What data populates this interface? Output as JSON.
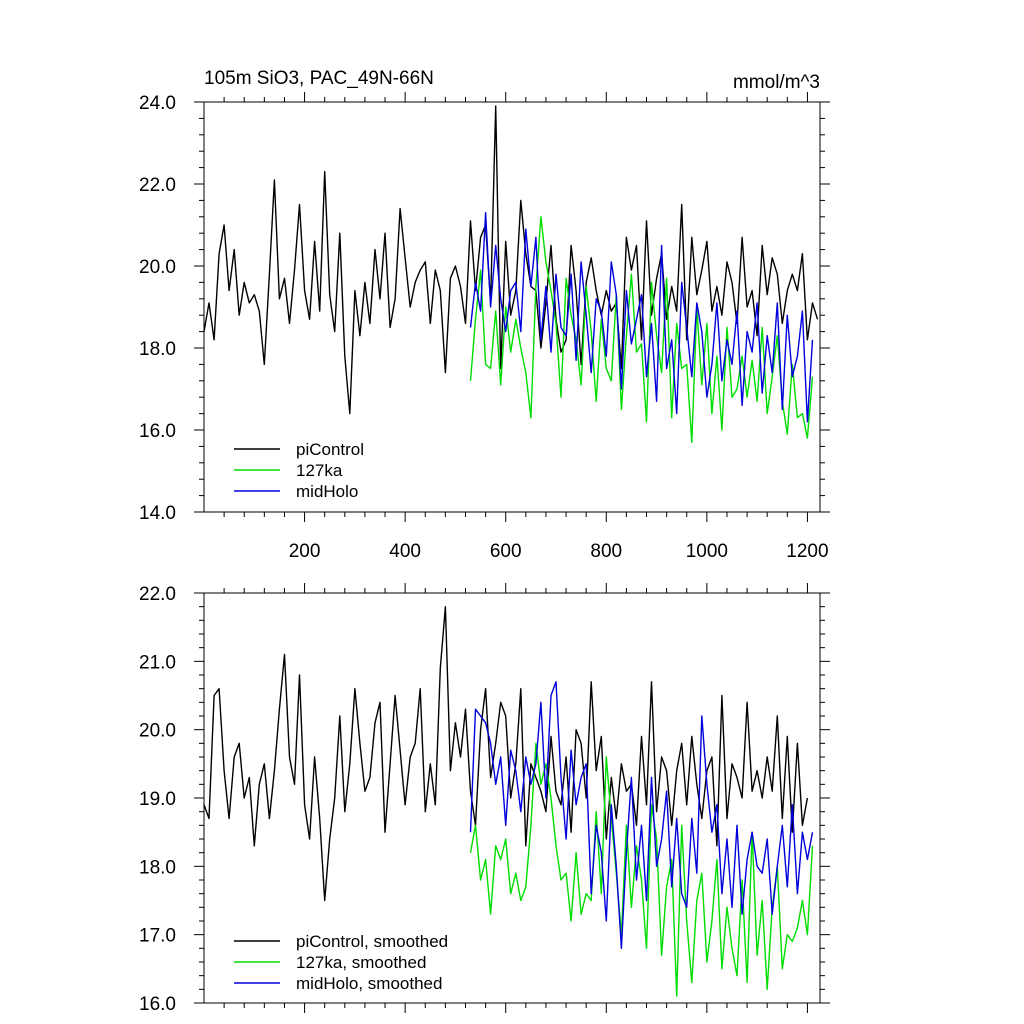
{
  "chart_data": [
    {
      "type": "line",
      "panel": "top",
      "title_left": "105m SiO3, PAC_49N-66N",
      "title_right": "mmol/m^3",
      "xlabel": "",
      "ylabel": "",
      "xlim": [
        0,
        1225
      ],
      "ylim": [
        14.0,
        24.0
      ],
      "x_ticks": [
        200,
        400,
        600,
        800,
        1000,
        1200
      ],
      "y_ticks": [
        "14.0",
        "16.0",
        "18.0",
        "20.0",
        "22.0",
        "24.0"
      ],
      "legend_position": "bottom-left",
      "series": [
        {
          "name": "piControl",
          "color": "#000000",
          "x_start": 0,
          "x_step": 10,
          "values": [
            18.4,
            19.1,
            18.2,
            20.3,
            21.0,
            19.4,
            20.4,
            18.8,
            19.6,
            19.1,
            19.3,
            18.9,
            17.6,
            19.8,
            22.1,
            19.2,
            19.7,
            18.6,
            19.9,
            21.5,
            19.4,
            18.7,
            20.6,
            18.9,
            22.3,
            19.3,
            18.4,
            20.8,
            17.8,
            16.4,
            19.4,
            18.3,
            19.6,
            18.6,
            20.4,
            19.2,
            20.8,
            18.5,
            19.2,
            21.4,
            20.2,
            19.0,
            19.6,
            19.9,
            20.1,
            18.6,
            19.9,
            19.4,
            17.4,
            19.7,
            20.0,
            19.5,
            18.6,
            21.1,
            19.4,
            20.7,
            21.0,
            19.1,
            23.9,
            17.5,
            20.6,
            18.8,
            19.4,
            21.6,
            20.3,
            19.5,
            19.4,
            18.0,
            19.1,
            20.5,
            18.7,
            17.9,
            18.2,
            20.5,
            19.4,
            17.6,
            19.6,
            20.2,
            19.4,
            18.8,
            19.4,
            18.9,
            19.1,
            17.5,
            20.7,
            19.9,
            20.5,
            18.2,
            21.1,
            18.8,
            19.7,
            20.3,
            18.7,
            19.5,
            18.9,
            21.5,
            18.2,
            20.7,
            19.3,
            19.9,
            20.6,
            18.9,
            19.5,
            18.8,
            20.1,
            19.6,
            18.6,
            20.7,
            19.0,
            19.4,
            18.3,
            20.5,
            19.3,
            20.2,
            19.8,
            18.6,
            19.4,
            19.8,
            19.4,
            20.3,
            18.2,
            19.1,
            18.7
          ]
        },
        {
          "name": "127ka",
          "color": "#00dd00",
          "x_start": 530,
          "x_step": 10,
          "values": [
            17.2,
            18.7,
            19.9,
            17.6,
            17.5,
            18.9,
            17.1,
            19.0,
            17.9,
            18.7,
            18.0,
            17.4,
            16.3,
            19.5,
            21.2,
            20.1,
            19.4,
            18.6,
            16.8,
            19.7,
            18.8,
            18.2,
            17.1,
            19.5,
            18.4,
            16.7,
            18.7,
            17.5,
            17.2,
            19.3,
            16.5,
            18.3,
            19.8,
            17.9,
            18.1,
            16.2,
            19.6,
            18.3,
            17.4,
            19.7,
            16.3,
            18.6,
            17.5,
            17.6,
            15.7,
            19.0,
            17.1,
            18.6,
            16.4,
            17.8,
            16.0,
            18.5,
            16.8,
            17.0,
            17.8,
            16.8,
            17.7,
            16.7,
            18.5,
            16.4,
            17.3,
            18.3,
            16.7,
            15.9,
            17.6,
            16.3,
            16.4,
            15.8,
            17.3
          ]
        },
        {
          "name": "midHolo",
          "color": "#0000dd",
          "x_start": 530,
          "x_step": 10,
          "values": [
            18.5,
            19.6,
            18.9,
            21.3,
            19.0,
            20.5,
            19.2,
            18.4,
            19.4,
            19.6,
            18.4,
            20.9,
            19.5,
            20.7,
            18.2,
            19.5,
            17.9,
            19.8,
            18.5,
            18.3,
            19.8,
            17.7,
            20.1,
            18.8,
            17.4,
            19.2,
            18.9,
            17.8,
            20.1,
            19.3,
            17.0,
            19.4,
            18.1,
            18.7,
            19.3,
            17.3,
            18.6,
            16.7,
            20.5,
            17.5,
            18.2,
            16.4,
            19.6,
            18.5,
            17.3,
            19.1,
            18.4,
            16.8,
            17.6,
            19.1,
            17.2,
            18.2,
            17.6,
            18.9,
            16.6,
            18.4,
            17.9,
            19.1,
            16.9,
            18.3,
            17.4,
            19.1,
            16.5,
            18.8,
            17.3,
            17.8,
            18.9,
            16.2,
            18.2
          ]
        }
      ],
      "legend": [
        "piControl",
        "127ka",
        "midHolo"
      ]
    },
    {
      "type": "line",
      "panel": "bottom",
      "title_left": "",
      "title_right": "",
      "xlabel": "",
      "ylabel": "",
      "xlim": [
        0,
        1225
      ],
      "ylim": [
        16.0,
        22.0
      ],
      "x_ticks": [
        200,
        400,
        600,
        800,
        1000,
        1200
      ],
      "y_ticks": [
        "16.0",
        "17.0",
        "18.0",
        "19.0",
        "20.0",
        "21.0",
        "22.0"
      ],
      "legend_position": "bottom-left",
      "series": [
        {
          "name": "piControl, smoothed",
          "color": "#000000",
          "x_start": 0,
          "x_step": 10,
          "values": [
            18.9,
            18.7,
            20.5,
            20.6,
            19.4,
            18.7,
            19.6,
            19.8,
            19.0,
            19.3,
            18.3,
            19.2,
            19.5,
            18.7,
            19.4,
            20.3,
            21.1,
            19.6,
            19.2,
            20.8,
            18.9,
            18.4,
            19.6,
            18.7,
            17.5,
            18.4,
            19.0,
            20.2,
            18.8,
            19.5,
            20.6,
            19.8,
            19.1,
            19.3,
            20.1,
            20.4,
            18.5,
            19.5,
            20.5,
            19.7,
            18.9,
            19.6,
            19.8,
            20.6,
            18.8,
            19.5,
            18.9,
            20.9,
            21.8,
            19.4,
            20.1,
            19.6,
            20.3,
            19.1,
            18.6,
            20.0,
            20.6,
            19.3,
            19.8,
            20.4,
            20.2,
            19.0,
            19.5,
            20.6,
            18.3,
            19.5,
            19.3,
            19.1,
            18.8,
            19.9,
            19.1,
            18.9,
            19.6,
            18.5,
            20.0,
            19.8,
            19.0,
            20.7,
            19.4,
            19.9,
            18.4,
            19.3,
            18.7,
            19.5,
            19.1,
            19.2,
            18.6,
            19.9,
            18.9,
            20.7,
            18.8,
            19.6,
            19.4,
            18.6,
            19.4,
            19.8,
            18.9,
            19.9,
            19.2,
            18.7,
            19.4,
            19.6,
            18.3,
            20.5,
            18.7,
            19.5,
            19.3,
            19.0,
            20.4,
            19.1,
            19.4,
            19.0,
            19.6,
            19.1,
            20.2,
            18.7,
            19.9,
            18.5,
            19.8,
            18.6,
            19.0
          ]
        },
        {
          "name": "127ka, smoothed",
          "color": "#00dd00",
          "x_start": 530,
          "x_step": 10,
          "values": [
            18.2,
            18.6,
            17.8,
            18.1,
            17.3,
            18.3,
            18.1,
            18.4,
            17.6,
            17.9,
            17.5,
            17.7,
            18.6,
            19.8,
            19.2,
            19.5,
            19.0,
            18.3,
            17.8,
            17.9,
            17.2,
            18.2,
            17.3,
            17.6,
            17.5,
            18.8,
            17.6,
            19.6,
            18.7,
            17.9,
            17.0,
            18.6,
            17.4,
            18.3,
            17.8,
            16.8,
            18.9,
            18.4,
            16.7,
            17.7,
            18.1,
            16.1,
            18.6,
            17.2,
            16.3,
            17.5,
            17.9,
            16.6,
            17.2,
            18.1,
            16.5,
            17.4,
            16.8,
            16.4,
            17.8,
            16.3,
            18.5,
            16.7,
            17.5,
            16.2,
            17.4,
            18.0,
            16.5,
            17.0,
            16.9,
            17.1,
            17.5,
            17.0,
            18.3
          ]
        },
        {
          "name": "midHolo, smoothed",
          "color": "#0000dd",
          "x_start": 530,
          "x_step": 10,
          "values": [
            18.5,
            20.3,
            20.2,
            20.1,
            19.8,
            19.2,
            19.6,
            18.6,
            19.7,
            19.4,
            18.8,
            19.6,
            19.2,
            19.5,
            20.4,
            19.0,
            20.5,
            20.7,
            19.3,
            18.4,
            19.7,
            18.9,
            19.3,
            19.5,
            17.6,
            18.6,
            18.2,
            17.2,
            18.9,
            18.0,
            16.8,
            18.2,
            19.3,
            17.8,
            18.6,
            17.5,
            19.3,
            18.0,
            18.4,
            19.1,
            17.7,
            18.7,
            17.6,
            17.4,
            18.7,
            17.9,
            20.2,
            19.2,
            18.5,
            18.9,
            17.6,
            18.4,
            17.4,
            18.6,
            17.3,
            18.1,
            18.5,
            18.0,
            17.9,
            18.4,
            17.3,
            18.0,
            18.6,
            17.7,
            18.9,
            17.6,
            18.5,
            18.1,
            18.5
          ]
        }
      ],
      "legend": [
        "piControl, smoothed",
        "127ka, smoothed",
        "midHolo, smoothed"
      ]
    }
  ]
}
